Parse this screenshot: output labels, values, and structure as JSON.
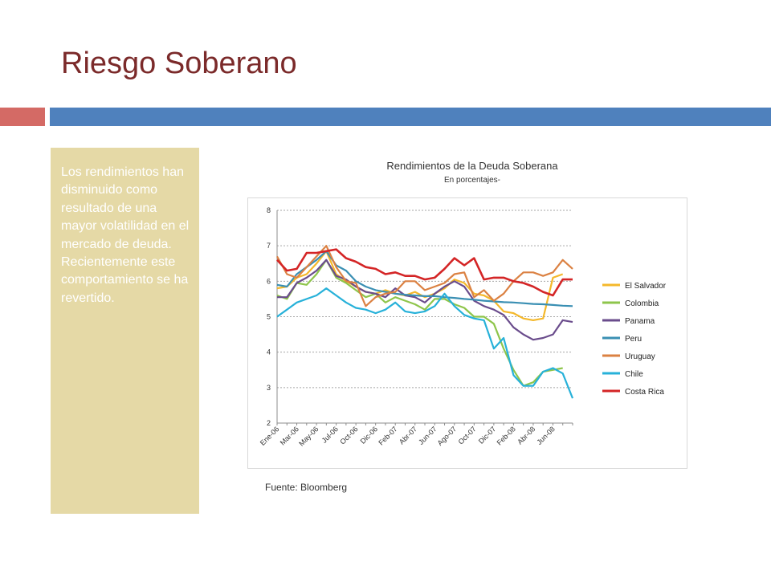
{
  "slide": {
    "title": "Riesgo Soberano",
    "body_text": "Los rendimientos han disminuido como resultado de una mayor volatilidad en el mercado de deuda. Recientemente este comportamiento se ha revertido.",
    "source_note": "Fuente: Bloomberg"
  },
  "colors": {
    "title": "#7b2a2a",
    "accent_red": "#d46a65",
    "accent_blue": "#4f81bd",
    "panel": "#e5d9a6"
  },
  "chart_data": {
    "type": "line",
    "title": "Rendimientos de la Deuda Soberana",
    "subtitle": "En porcentajes-",
    "xlabel": "",
    "ylabel": "",
    "ylim": [
      2,
      8
    ],
    "yticks": [
      2,
      3,
      4,
      5,
      6,
      7,
      8
    ],
    "grid": true,
    "legend_position": "right",
    "x_tick_labels": [
      "Ene-06",
      "Mar-06",
      "May-06",
      "Jul-06",
      "Oct-06",
      "Dic-06",
      "Feb-07",
      "Abr-07",
      "Jun-07",
      "Ago-07",
      "Oct-07",
      "Dic-07",
      "Feb-08",
      "Abr-08",
      "Jun-08"
    ],
    "x_tick_indices": [
      0,
      2,
      4,
      6,
      8,
      10,
      12,
      14,
      16,
      18,
      20,
      22,
      24,
      26,
      28
    ],
    "num_points": 31,
    "series": [
      {
        "name": "El Salvador",
        "color": "#f4b82b",
        "values": [
          5.8,
          5.85,
          6.1,
          6.2,
          6.5,
          6.85,
          6.2,
          6.0,
          5.85,
          5.7,
          5.65,
          5.75,
          5.65,
          5.6,
          5.7,
          5.55,
          5.65,
          5.8,
          6.05,
          5.95,
          5.65,
          5.6,
          5.45,
          5.15,
          5.1,
          4.95,
          4.9,
          4.95,
          6.1,
          6.2,
          null
        ]
      },
      {
        "name": "Colombia",
        "color": "#8ec54b",
        "values": [
          5.6,
          5.5,
          5.95,
          5.9,
          6.2,
          6.6,
          6.1,
          5.95,
          5.75,
          5.55,
          5.65,
          5.4,
          5.55,
          5.45,
          5.35,
          5.2,
          5.5,
          5.5,
          5.35,
          5.25,
          5.0,
          5.0,
          4.8,
          4.1,
          3.5,
          3.05,
          3.15,
          3.45,
          3.5,
          3.55,
          null
        ]
      },
      {
        "name": "Panama",
        "color": "#6a4c8c",
        "values": [
          5.55,
          5.55,
          5.95,
          6.1,
          6.3,
          6.6,
          6.15,
          6.05,
          5.85,
          5.7,
          5.65,
          5.55,
          5.8,
          5.6,
          5.55,
          5.4,
          5.65,
          5.85,
          6.0,
          5.85,
          5.45,
          5.3,
          5.2,
          5.05,
          4.7,
          4.5,
          4.35,
          4.4,
          4.5,
          4.9,
          4.85
        ]
      },
      {
        "name": "Peru",
        "color": "#3a8fb3",
        "values": [
          5.9,
          5.85,
          6.2,
          6.4,
          6.6,
          6.85,
          6.45,
          6.3,
          6.0,
          5.85,
          5.75,
          5.7,
          5.65,
          5.62,
          5.6,
          5.58,
          5.58,
          5.55,
          5.53,
          5.5,
          5.48,
          5.45,
          5.43,
          5.41,
          5.4,
          5.38,
          5.36,
          5.35,
          5.33,
          5.31,
          5.3
        ]
      },
      {
        "name": "Uruguay",
        "color": "#db8142",
        "values": [
          6.7,
          6.2,
          6.1,
          6.4,
          6.7,
          7.0,
          6.4,
          6.0,
          5.95,
          5.3,
          5.55,
          5.65,
          5.7,
          6.0,
          6.0,
          5.75,
          5.85,
          5.95,
          6.2,
          6.25,
          5.55,
          5.75,
          5.45,
          5.65,
          6.0,
          6.25,
          6.25,
          6.15,
          6.25,
          6.6,
          6.35
        ]
      },
      {
        "name": "Chile",
        "color": "#27b1d9",
        "values": [
          5.0,
          5.2,
          5.4,
          5.5,
          5.6,
          5.8,
          5.6,
          5.4,
          5.25,
          5.2,
          5.1,
          5.2,
          5.4,
          5.15,
          5.1,
          5.15,
          5.3,
          5.65,
          5.3,
          5.05,
          4.95,
          4.9,
          4.1,
          4.4,
          3.35,
          3.05,
          3.05,
          3.45,
          3.55,
          3.4,
          2.7
        ]
      },
      {
        "name": "Costa Rica",
        "color": "#d42526",
        "values": [
          6.6,
          6.3,
          6.35,
          6.8,
          6.8,
          6.85,
          6.9,
          6.65,
          6.55,
          6.4,
          6.35,
          6.2,
          6.25,
          6.15,
          6.15,
          6.05,
          6.1,
          6.35,
          6.65,
          6.45,
          6.65,
          6.05,
          6.1,
          6.1,
          6.0,
          5.95,
          5.85,
          5.7,
          5.6,
          6.05,
          6.05
        ]
      }
    ]
  }
}
